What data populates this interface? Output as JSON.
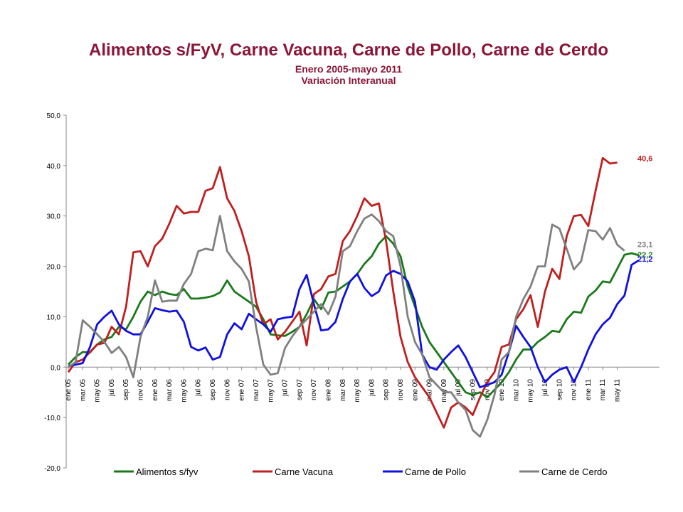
{
  "header": {
    "title": "Alimentos s/FyV, Carne Vacuna, Carne de Pollo, Carne de Cerdo",
    "subtitle1": "Enero 2005-mayo 2011",
    "subtitle2": "Variación Interanual"
  },
  "chart_data": {
    "type": "line",
    "ylim": [
      -20,
      50
    ],
    "yticks": [
      "50,0",
      "40,0",
      "30,0",
      "20,0",
      "10,0",
      "0,0",
      "-10,0",
      "-20,0"
    ],
    "ytick_values": [
      50,
      40,
      30,
      20,
      10,
      0,
      -10,
      -20
    ],
    "grid": false,
    "legend_position": "bottom",
    "xticklabels": [
      "ene 05",
      "mar 05",
      "may 05",
      "jul 05",
      "sep 05",
      "nov 05",
      "ene 06",
      "mar 06",
      "may 06",
      "jul 06",
      "sep 06",
      "nov 06",
      "ene 07",
      "mar 07",
      "may 07",
      "jul 07",
      "sep 07",
      "nov 07",
      "ene 08",
      "mar 08",
      "may 08",
      "jul 08",
      "sep 08",
      "nov 08",
      "ene 09",
      "mar 09",
      "may 09",
      "jul 09",
      "sep 09",
      "nov 09",
      "ene 10",
      "mar 10",
      "may 10",
      "jul 10",
      "sep 10",
      "nov 10",
      "ene 11",
      "mar 11",
      "may 11"
    ],
    "series": [
      {
        "name": "Alimentos s/fyv",
        "color": "#1A7A1A",
        "end_label": "22,2",
        "values": [
          0.5,
          2,
          3,
          2.9,
          4.5,
          5.5,
          6,
          8,
          7.5,
          10,
          13,
          15,
          14.3,
          15,
          14.5,
          14.3,
          15.5,
          13.6,
          13.6,
          13.8,
          14.1,
          14.8,
          17.2,
          15,
          14,
          13,
          12,
          9.5,
          6.5,
          6.3,
          6.2,
          7,
          8,
          10.5,
          13.5,
          11.5,
          14.8,
          15,
          16,
          17,
          18.5,
          20.5,
          22,
          24.5,
          26,
          24.5,
          22,
          16,
          12,
          8,
          5,
          3,
          1,
          -1,
          -3,
          -5,
          -5.5,
          -5,
          -6,
          -4.5,
          -3,
          -1,
          1.5,
          3.5,
          3.5,
          5,
          6,
          7.2,
          7,
          9.5,
          11,
          10.8,
          14,
          15.2,
          17,
          16.8,
          19.5,
          22.3,
          22.6,
          22.2
        ]
      },
      {
        "name": "Carne Vacuna",
        "color": "#C01F1F",
        "end_label": "40,6",
        "values": [
          -1,
          1,
          1.5,
          3,
          4.5,
          4.8,
          8,
          6.5,
          12,
          22.8,
          23,
          20,
          24,
          25.5,
          28.5,
          32,
          30.5,
          30.8,
          30.8,
          35,
          35.5,
          39.7,
          33.5,
          31,
          27,
          22,
          13,
          8.5,
          9.5,
          5.5,
          7,
          9,
          11,
          4.3,
          14.5,
          15.5,
          18,
          18.5,
          25,
          27,
          30,
          33.5,
          32,
          32.5,
          25,
          15,
          6,
          1,
          -2,
          -4,
          -6,
          -9,
          -12,
          -8,
          -7,
          -8,
          -9.5,
          -6,
          -3,
          -1,
          4,
          4.5,
          9.5,
          11.5,
          14.3,
          8,
          15,
          19.5,
          17.5,
          26,
          30,
          30.2,
          28,
          35,
          41.5,
          40.4,
          40.6
        ]
      },
      {
        "name": "Carne de Pollo",
        "color": "#1010E0",
        "end_label": "21,2",
        "values": [
          0.2,
          0.5,
          0.8,
          4,
          8.5,
          10,
          11.2,
          8.5,
          7.2,
          6.5,
          6.5,
          9,
          11.7,
          11.3,
          11,
          11.2,
          9,
          4,
          3.3,
          3.9,
          1.5,
          2,
          6.5,
          8.7,
          7.5,
          10.6,
          9.5,
          8.5,
          7,
          9.5,
          9.8,
          10,
          15.5,
          18.3,
          12.5,
          7.3,
          7.5,
          9,
          13.5,
          17,
          18.5,
          15.7,
          14.1,
          15,
          18.2,
          19.1,
          18.5,
          17,
          13,
          2.5,
          0,
          -0.5,
          1.5,
          3,
          4.3,
          2,
          -1,
          -4,
          -3.5,
          -3,
          -1.5,
          3,
          8.2,
          6,
          4,
          0,
          -3,
          -1.5,
          -0.5,
          0,
          -3,
          0,
          3.5,
          6.5,
          8.5,
          9.8,
          12.5,
          14.2,
          20.3,
          21.2
        ]
      },
      {
        "name": "Carne de Cerdo",
        "color": "#808080",
        "end_label": "23,1",
        "values": [
          0,
          1,
          9.3,
          8,
          6.5,
          5,
          2.8,
          4,
          2,
          -2,
          6,
          10,
          17.2,
          13,
          13.2,
          13.2,
          16.5,
          18.5,
          23,
          23.5,
          23.2,
          30,
          23,
          21,
          19.5,
          17,
          8,
          0.5,
          -1.5,
          -1.2,
          3.8,
          6.1,
          8,
          9.5,
          11,
          12.5,
          10.5,
          14,
          23,
          24,
          27,
          29.5,
          30.3,
          29,
          27,
          26,
          20,
          10,
          5,
          2.5,
          -2,
          -3.5,
          -5,
          -5,
          -7,
          -8.5,
          -12.5,
          -13.8,
          -10.5,
          -5.5,
          1.5,
          3,
          10,
          13.5,
          16,
          20,
          20,
          28.3,
          27.5,
          23.5,
          19.4,
          21,
          27.2,
          27,
          25.3,
          27.6,
          24.3,
          23.1
        ]
      }
    ]
  }
}
